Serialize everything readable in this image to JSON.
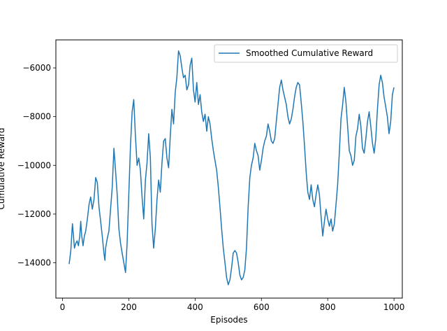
{
  "chart_data": {
    "type": "line",
    "title": "",
    "xlabel": "Episodes",
    "ylabel": "Cumulative Reward",
    "xlim": [
      -20,
      1025
    ],
    "ylim": [
      -15450,
      -4850
    ],
    "xticks": [
      0,
      200,
      400,
      600,
      800,
      1000
    ],
    "yticks": [
      -14000,
      -12000,
      -10000,
      -8000,
      -6000
    ],
    "xtick_labels": [
      "0",
      "200",
      "400",
      "600",
      "800",
      "1000"
    ],
    "ytick_labels": [
      "−14000",
      "−12000",
      "−10000",
      "−8000",
      "−6000"
    ],
    "grid": false,
    "legend_position": "upper right",
    "series": [
      {
        "name": "Smoothed Cumulative Reward",
        "color": "#1f77b4",
        "x": [
          20,
          25,
          28,
          30,
          33,
          36,
          40,
          44,
          48,
          52,
          55,
          58,
          62,
          66,
          70,
          75,
          80,
          85,
          90,
          95,
          100,
          105,
          110,
          115,
          120,
          125,
          128,
          130,
          135,
          140,
          145,
          150,
          155,
          160,
          165,
          170,
          175,
          180,
          185,
          190,
          195,
          200,
          205,
          210,
          215,
          220,
          225,
          230,
          235,
          240,
          245,
          250,
          255,
          260,
          265,
          270,
          275,
          280,
          285,
          290,
          295,
          300,
          305,
          310,
          315,
          320,
          325,
          330,
          335,
          340,
          345,
          350,
          355,
          360,
          365,
          370,
          375,
          380,
          385,
          390,
          395,
          400,
          405,
          410,
          415,
          420,
          425,
          430,
          435,
          440,
          445,
          450,
          455,
          460,
          465,
          470,
          475,
          480,
          485,
          490,
          495,
          500,
          505,
          510,
          515,
          520,
          525,
          530,
          535,
          540,
          545,
          550,
          555,
          560,
          565,
          570,
          575,
          580,
          585,
          590,
          595,
          600,
          605,
          610,
          615,
          620,
          625,
          630,
          635,
          640,
          645,
          650,
          655,
          660,
          665,
          670,
          675,
          680,
          685,
          690,
          695,
          700,
          705,
          710,
          715,
          720,
          725,
          730,
          735,
          740,
          745,
          750,
          755,
          760,
          765,
          770,
          775,
          780,
          785,
          790,
          795,
          800,
          805,
          810,
          815,
          820,
          825,
          830,
          835,
          840,
          845,
          850,
          855,
          860,
          865,
          870,
          875,
          880,
          885,
          890,
          895,
          900,
          905,
          910,
          915,
          920,
          925,
          930,
          935,
          940,
          945,
          950,
          955,
          960,
          965,
          970,
          975,
          980,
          985,
          990,
          995,
          1000
        ],
        "y": [
          -14050,
          -13500,
          -12800,
          -12400,
          -12900,
          -13400,
          -13200,
          -13100,
          -13300,
          -12900,
          -12300,
          -12900,
          -13300,
          -12900,
          -12700,
          -12200,
          -11600,
          -11300,
          -11800,
          -11400,
          -10500,
          -10700,
          -11700,
          -12300,
          -12900,
          -13600,
          -13900,
          -13400,
          -13000,
          -12700,
          -11800,
          -10900,
          -9300,
          -10200,
          -11200,
          -12600,
          -13200,
          -13600,
          -14000,
          -14400,
          -13200,
          -11200,
          -9200,
          -7800,
          -7300,
          -8800,
          -10000,
          -9700,
          -10200,
          -11300,
          -12200,
          -10600,
          -9900,
          -8700,
          -9700,
          -12400,
          -13400,
          -12600,
          -11400,
          -10600,
          -11100,
          -9900,
          -9000,
          -8900,
          -9700,
          -10100,
          -8800,
          -7700,
          -8300,
          -7000,
          -6400,
          -5300,
          -5500,
          -6000,
          -6400,
          -6300,
          -6900,
          -6700,
          -5900,
          -5600,
          -6900,
          -7400,
          -6600,
          -7500,
          -7100,
          -7800,
          -8200,
          -7900,
          -8600,
          -8000,
          -8300,
          -8900,
          -9400,
          -9800,
          -10200,
          -10900,
          -11700,
          -12600,
          -13400,
          -14000,
          -14600,
          -14900,
          -14700,
          -14200,
          -13600,
          -13500,
          -13600,
          -14000,
          -14500,
          -14700,
          -14600,
          -14300,
          -13400,
          -11700,
          -10500,
          -10000,
          -9700,
          -9100,
          -9400,
          -9600,
          -10200,
          -9800,
          -9300,
          -9000,
          -8800,
          -8300,
          -8600,
          -9000,
          -9100,
          -8900,
          -8200,
          -7500,
          -6800,
          -6500,
          -6900,
          -7200,
          -7500,
          -8000,
          -8300,
          -8100,
          -7700,
          -7200,
          -6800,
          -6600,
          -6700,
          -7400,
          -8200,
          -9200,
          -10300,
          -11100,
          -11400,
          -10800,
          -11400,
          -11700,
          -11200,
          -10800,
          -11200,
          -12100,
          -12900,
          -12300,
          -11800,
          -12200,
          -12500,
          -12200,
          -12700,
          -12400,
          -11600,
          -10800,
          -9500,
          -8100,
          -7500,
          -6800,
          -7400,
          -8400,
          -9400,
          -9600,
          -10000,
          -9800,
          -8800,
          -8500,
          -7900,
          -8400,
          -9300,
          -9500,
          -8900,
          -8200,
          -7800,
          -8400,
          -9100,
          -9500,
          -8900,
          -7700,
          -6700,
          -6300,
          -6600,
          -7200,
          -7600,
          -8000,
          -8700,
          -8200,
          -7100,
          -6800
        ]
      }
    ]
  }
}
